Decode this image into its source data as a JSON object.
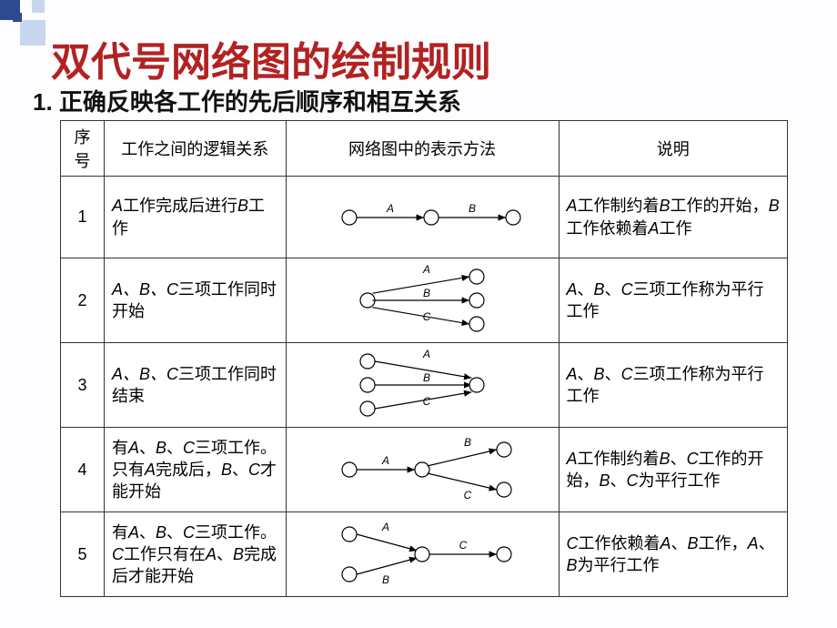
{
  "title": "双代号网络图的绘制规则",
  "subtitle": "1.  正确反映各工作的先后顺序和相互关系",
  "headers": {
    "num": "序号",
    "logic": "工作之间的逻辑关系",
    "diagram": "网络图中的表示方法",
    "desc": "说明"
  },
  "rows": [
    {
      "num": "1",
      "logic_pre": "A",
      "logic_mid": "工作完成后进行",
      "logic_post": "B",
      "logic_end": "工作",
      "desc": "A工作制约着B工作的开始，B工作依赖着A工作",
      "diagram_type": "chain2",
      "labels": [
        "A",
        "B"
      ]
    },
    {
      "num": "2",
      "logic_pre": "A、B、C",
      "logic_mid": "三项工作同时开始",
      "logic_post": "",
      "logic_end": "",
      "desc": "A、B、C三项工作称为平行工作",
      "diagram_type": "fanout3",
      "labels": [
        "A",
        "B",
        "C"
      ]
    },
    {
      "num": "3",
      "logic_pre": "A、B、C",
      "logic_mid": "三项工作同时结束",
      "logic_post": "",
      "logic_end": "",
      "desc": "A、B、C三项工作称为平行工作",
      "diagram_type": "fanin3",
      "labels": [
        "A",
        "B",
        "C"
      ]
    },
    {
      "num": "4",
      "logic_full": "有A、B、C三项工作。只有A完成后，B、C才能开始",
      "desc": "A工作制约着B、C工作的开始，B、C为平行工作",
      "diagram_type": "one_to_two",
      "labels": [
        "A",
        "B",
        "C"
      ]
    },
    {
      "num": "5",
      "logic_full": "有A、B、C三项工作。C工作只有在A、B完成后才能开始",
      "desc": "C工作依赖着A、B工作，A、B为平行工作",
      "diagram_type": "two_to_one",
      "labels": [
        "A",
        "B",
        "C"
      ]
    }
  ],
  "style": {
    "title_color": "#b22222",
    "node_stroke": "#000000",
    "node_fill": "#ffffff",
    "arrow_stroke": "#000000",
    "label_color": "#000000",
    "node_radius": 8
  }
}
